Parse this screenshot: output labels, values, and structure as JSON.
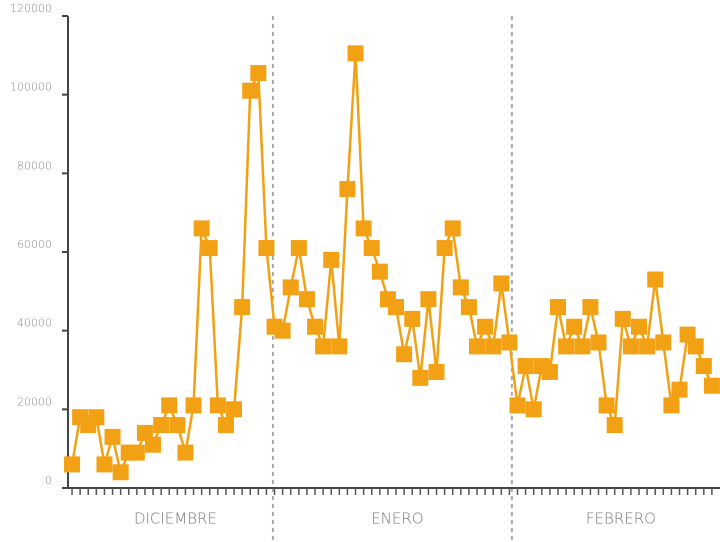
{
  "chart_data": {
    "type": "line",
    "categories": [
      null,
      null,
      null,
      null,
      null,
      null,
      null,
      null,
      null,
      null,
      null,
      null,
      null,
      null,
      null,
      null,
      null,
      null,
      null,
      null,
      null,
      null,
      null,
      null,
      null,
      null,
      null,
      null,
      null,
      null,
      null,
      null,
      null,
      null,
      null,
      null,
      null,
      null,
      null,
      null,
      null,
      null,
      null,
      null,
      null,
      null,
      null,
      null,
      null,
      null,
      null,
      null,
      null,
      null,
      null,
      null,
      null,
      null,
      null,
      null,
      null,
      null,
      null,
      null,
      null,
      null,
      null,
      null,
      null,
      null,
      null,
      null,
      null,
      null,
      null,
      null,
      null,
      null,
      null,
      null
    ],
    "series": [
      {
        "color": "#f2a114",
        "values": [
          6000,
          18000,
          16000,
          18000,
          6000,
          13000,
          4000,
          9000,
          9000,
          14000,
          11000,
          16000,
          21000,
          16000,
          9000,
          21000,
          66000,
          61000,
          21000,
          16000,
          20000,
          46000,
          101000,
          105500,
          61000,
          41000,
          40000,
          51000,
          61000,
          48000,
          41000,
          36000,
          58000,
          36000,
          76000,
          110500,
          66000,
          61000,
          55000,
          48000,
          46000,
          34000,
          43000,
          28000,
          48000,
          29500,
          61000,
          66000,
          51000,
          46000,
          36000,
          41000,
          36000,
          52000,
          37000,
          21000,
          31000,
          20000,
          31000,
          29500,
          46000,
          36000,
          41000,
          36000,
          46000,
          37000,
          21000,
          16000,
          43000,
          36000,
          41000,
          36000,
          53000,
          37000,
          21000,
          25000,
          39000,
          36000,
          31000,
          26000
        ]
      }
    ],
    "months": [
      {
        "label": "DICIEMBRE",
        "start": -0.5,
        "end": 24.8
      },
      {
        "label": "ENERO",
        "start": 24.8,
        "end": 54.3
      },
      {
        "label": "FEBRERO",
        "start": 54.3,
        "end": 80
      }
    ],
    "xlim": [
      -0.5,
      80
    ],
    "ylim": [
      0,
      120000
    ],
    "yticks": [
      0,
      20000,
      40000,
      60000,
      80000,
      100000,
      120000
    ]
  }
}
